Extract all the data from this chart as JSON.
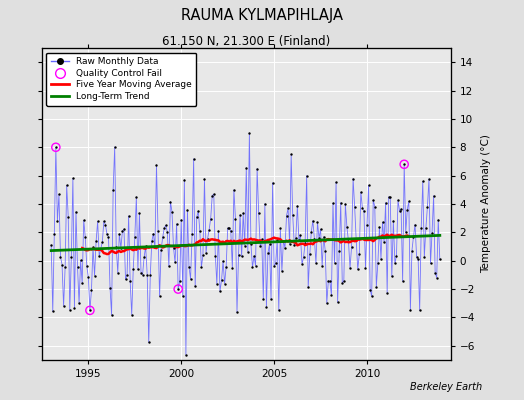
{
  "title": "RAUMA KYLMAPIHLAJA",
  "subtitle": "61.150 N, 21.300 E (Finland)",
  "ylabel": "Temperature Anomaly (°C)",
  "credit": "Berkeley Earth",
  "ylim": [
    -7,
    15
  ],
  "yticks": [
    -6,
    -4,
    -2,
    0,
    2,
    4,
    6,
    8,
    10,
    12,
    14
  ],
  "xlim": [
    1992.5,
    2014.5
  ],
  "xticks": [
    1995,
    2000,
    2005,
    2010
  ],
  "background_color": "#e0e0e0",
  "plot_bg_color": "#e8e8e8",
  "line_color": "#6666ff",
  "dot_color": "black",
  "qc_color": "magenta",
  "ma_color": "red",
  "trend_color": "green",
  "seed": 17,
  "start_year": 1993.0,
  "n_months": 252,
  "trend_intercept": 0.5,
  "trend_slope": 0.004
}
